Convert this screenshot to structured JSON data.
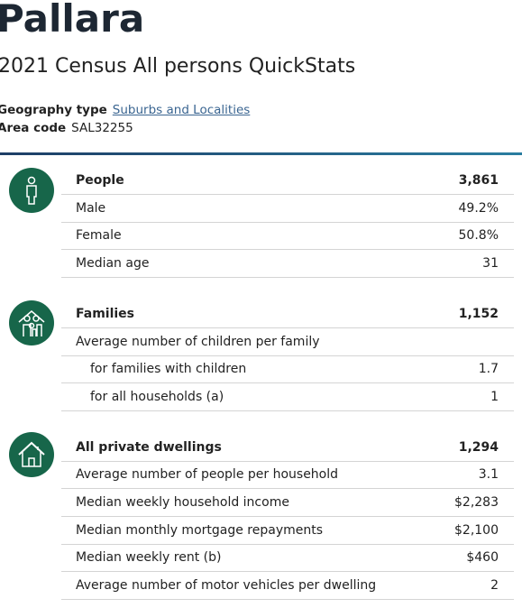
{
  "header": {
    "title": "Pallara",
    "subtitle": "2021 Census All persons QuickStats",
    "geography": {
      "label": "Geography type",
      "value": "Suburbs and Localities"
    },
    "area_code": {
      "label": "Area code",
      "value": "SAL32255"
    }
  },
  "sections": [
    {
      "heading": {
        "label": "People",
        "value": "3,861"
      },
      "rows": [
        {
          "label": "Male",
          "value": "49.2%"
        },
        {
          "label": "Female",
          "value": "50.8%"
        },
        {
          "label": "Median age",
          "value": "31"
        }
      ]
    },
    {
      "heading": {
        "label": "Families",
        "value": "1,152"
      },
      "rows": [
        {
          "label": "Average number of children per family",
          "subrows": [
            {
              "label": "for families with children",
              "value": "1.7"
            },
            {
              "label": "for all households (a)",
              "value": "1"
            }
          ]
        }
      ]
    },
    {
      "heading": {
        "label": "All private dwellings",
        "value": "1,294"
      },
      "rows": [
        {
          "label": "Average number of people per household",
          "value": "3.1"
        },
        {
          "label": "Median weekly household income",
          "value": "$2,283"
        },
        {
          "label": "Median monthly mortgage repayments",
          "value": "$2,100"
        },
        {
          "label": "Median weekly rent (b)",
          "value": "$460"
        },
        {
          "label": "Average number of motor vehicles per dwelling",
          "value": "2"
        }
      ]
    }
  ]
}
